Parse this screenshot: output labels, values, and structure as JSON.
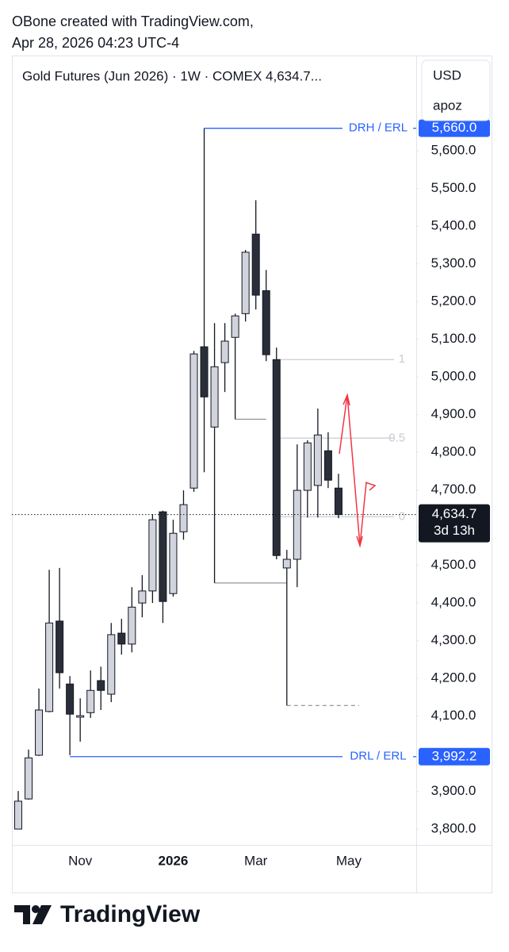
{
  "header": {
    "line1": "OBone created with TradingView.com,",
    "line2": "Apr 28, 2026 04:23 UTC-4"
  },
  "footer_logo": "TradingView",
  "currency": "USD",
  "menu_item": "apoz",
  "chart_data": {
    "type": "candlestick",
    "title": "Gold Futures (Jun 2026) · 1W · COMEX  4,634.7...",
    "categories": [
      null,
      null,
      null,
      null,
      null,
      null,
      "Nov",
      null,
      null,
      null,
      null,
      null,
      null,
      null,
      null,
      "2026",
      null,
      null,
      null,
      null,
      null,
      null,
      null,
      "Mar",
      null,
      null,
      null,
      null,
      null,
      null,
      null,
      null,
      "May",
      null,
      null,
      null,
      null,
      null,
      null
    ],
    "open": [
      3800,
      3880,
      3996,
      4112,
      4352,
      4185,
      4097,
      4109,
      4194,
      4158,
      4320,
      4291,
      4400,
      4432,
      4642,
      4425,
      4589,
      4705,
      5080,
      4867,
      5038,
      5105,
      5168,
      5379,
      5229,
      5046,
      4493,
      4516,
      4699,
      4712,
      4804,
      4705,
      null,
      null,
      null,
      null,
      null,
      null,
      null
    ],
    "high": [
      3901,
      4011,
      4173,
      4488,
      4493,
      4206,
      4147,
      4221,
      4231,
      4347,
      4358,
      4442,
      4474,
      4636,
      4645,
      4621,
      4699,
      5069,
      5660,
      5143,
      5143,
      5168,
      5337,
      5469,
      5284,
      5078,
      4541,
      4821,
      4832,
      4916,
      4853,
      4743,
      null,
      null,
      null,
      null,
      null,
      null,
      null
    ],
    "low": [
      3800,
      3878,
      3994,
      4110,
      4173,
      3996,
      4032,
      4095,
      4116,
      4137,
      4263,
      4269,
      4362,
      4400,
      4347,
      4417,
      4568,
      4695,
      4747,
      4453,
      4960,
      4888,
      5147,
      5179,
      5042,
      4516,
      4128,
      4442,
      4627,
      4627,
      4705,
      4625,
      null,
      null,
      null,
      null,
      null,
      null,
      null
    ],
    "close": [
      3874,
      3989,
      4116,
      4347,
      4215,
      4105,
      4101,
      4168,
      4168,
      4316,
      4291,
      4389,
      4432,
      4621,
      4404,
      4585,
      4661,
      5061,
      4947,
      5027,
      5095,
      5162,
      5331,
      5217,
      5059,
      4526,
      4516,
      4699,
      4825,
      4846,
      4726,
      4634.7,
      null,
      null,
      null,
      null,
      null,
      null,
      null
    ],
    "up_color": "#d1d4dc",
    "down_color": "#2a2e39",
    "ylim": [
      3758,
      5853
    ],
    "yticks": [
      {
        "value": 3800,
        "label": "3,800.0"
      },
      {
        "value": 3900,
        "label": "3,900.0"
      },
      {
        "value": 4000,
        "label": "4,000.0"
      },
      {
        "value": 4100,
        "label": "4,100.0"
      },
      {
        "value": 4200,
        "label": "4,200.0"
      },
      {
        "value": 4300,
        "label": "4,300.0"
      },
      {
        "value": 4400,
        "label": "4,400.0"
      },
      {
        "value": 4500,
        "label": "4,500.0"
      },
      {
        "value": 4600,
        "label": "4,600.0"
      },
      {
        "value": 4700,
        "label": "4,700.0"
      },
      {
        "value": 4800,
        "label": "4,800.0"
      },
      {
        "value": 4900,
        "label": "4,900.0"
      },
      {
        "value": 5000,
        "label": "5,000.0"
      },
      {
        "value": 5100,
        "label": "5,100.0"
      },
      {
        "value": 5200,
        "label": "5,200.0"
      },
      {
        "value": 5300,
        "label": "5,300.0"
      },
      {
        "value": 5400,
        "label": "5,400.0"
      },
      {
        "value": 5500,
        "label": "5,500.0"
      },
      {
        "value": 5600,
        "label": "5,600.0"
      }
    ],
    "levels": [
      {
        "label": "DRH / ERL",
        "value": 5660,
        "value_label": "5,660.0",
        "from": 18,
        "color": "#2962ff"
      },
      {
        "label": "DRL / ERL",
        "value": 3992.2,
        "value_label": "3,992.2",
        "from": 5,
        "color": "#2962ff"
      }
    ],
    "drawings": [
      {
        "value": 4453,
        "from": 19,
        "to": 26,
        "dashed": false
      },
      {
        "value": 4888,
        "from": 21,
        "to": 24,
        "dashed": false
      },
      {
        "value": 4128,
        "from": 26,
        "to": 33,
        "dashed": true
      }
    ],
    "fib": {
      "levels": [
        1,
        0.5,
        0
      ],
      "price_0": 4629,
      "price_1": 5046,
      "from": 25,
      "to": 37
    },
    "last_price": {
      "value": 4634.7,
      "label": "4,634.7",
      "countdown": "3d 13h"
    }
  }
}
